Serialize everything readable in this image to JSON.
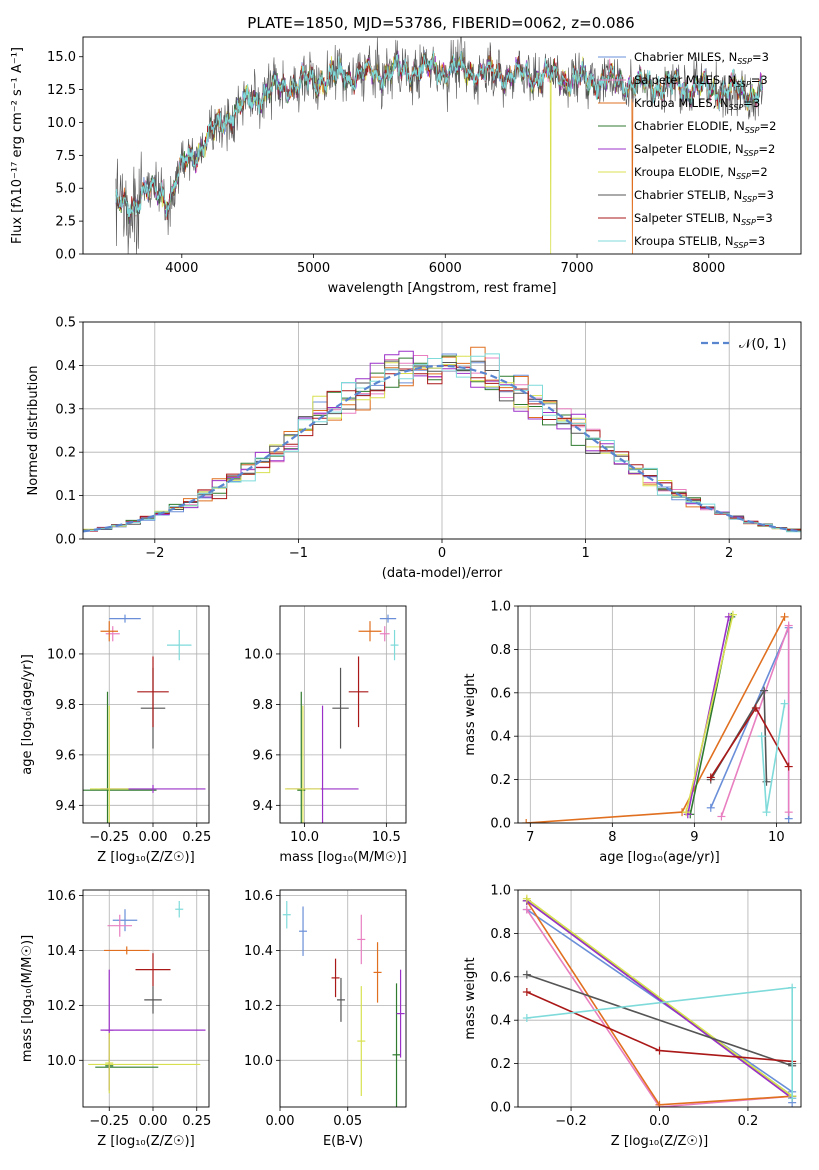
{
  "figure": {
    "title": "PLATE=1850, MJD=53786, FIBERID=0062, z=0.086"
  },
  "colors": {
    "Chabrier MILES": "#6a8fd8",
    "Salpeter MILES": "#e87fc0",
    "Kroupa MILES": "#e07020",
    "Chabrier ELODIE": "#2f7a2f",
    "Salpeter ELODIE": "#9b30c8",
    "Kroupa ELODIE": "#d8e050",
    "Chabrier STELIB": "#555555",
    "Salpeter STELIB": "#aa1818",
    "Kroupa STELIB": "#7fdada"
  },
  "chart_data": [
    {
      "id": "spectrum",
      "type": "line",
      "title": "PLATE=1850, MJD=53786, FIBERID=0062, z=0.086",
      "xlabel": "wavelength [Angstrom, rest frame]",
      "ylabel": "Flux [fλ10⁻¹⁷ erg cm⁻² s⁻¹ A⁻¹]",
      "xlim": [
        3250,
        8700
      ],
      "ylim": [
        0,
        16.5
      ],
      "xticks": [
        4000,
        5000,
        6000,
        7000,
        8000
      ],
      "yticks": [
        0.0,
        2.5,
        5.0,
        7.5,
        10.0,
        12.5,
        15.0
      ],
      "xtick_labels": [
        "4000",
        "5000",
        "6000",
        "7000",
        "8000"
      ],
      "ytick_labels": [
        "0.0",
        "2.5",
        "5.0",
        "7.5",
        "10.0",
        "12.5",
        "15.0"
      ],
      "grid": false,
      "legend_position": "right",
      "continuum": {
        "x": [
          3500,
          3600,
          3700,
          3800,
          3900,
          4000,
          4100,
          4200,
          4300,
          4400,
          4500,
          4600,
          4700,
          4800,
          4900,
          5000,
          5200,
          5400,
          5600,
          5800,
          6000,
          6200,
          6400,
          6600,
          6800,
          7000,
          7200,
          7400,
          7600,
          7800,
          8000,
          8200,
          8400
        ],
        "y": [
          3.8,
          3.3,
          4.8,
          4.6,
          4.2,
          6.5,
          7.7,
          8.8,
          10.0,
          10.8,
          11.6,
          12.2,
          12.5,
          12.8,
          13.0,
          13.2,
          13.5,
          13.7,
          13.9,
          14.0,
          14.1,
          13.9,
          13.7,
          13.6,
          13.5,
          13.3,
          13.2,
          13.0,
          12.8,
          12.7,
          12.6,
          12.4,
          12.3
        ]
      },
      "data_series": "Chabrier STELIB",
      "model_series": "Kroupa STELIB",
      "dropouts": [
        {
          "series": "Kroupa ELODIE",
          "x": 6800
        },
        {
          "series": "Kroupa MILES",
          "x": 7420
        }
      ],
      "legend": [
        {
          "name": "Chabrier MILES",
          "label": "Chabrier MILES, N",
          "sub": "SSP",
          "tail": "=3"
        },
        {
          "name": "Salpeter MILES",
          "label": "Salpeter MILES, N",
          "sub": "SSP",
          "tail": "=3"
        },
        {
          "name": "Kroupa MILES",
          "label": "Kroupa MILES, N",
          "sub": "SSP",
          "tail": "=3"
        },
        {
          "name": "Chabrier ELODIE",
          "label": "Chabrier ELODIE, N",
          "sub": "SSP",
          "tail": "=2"
        },
        {
          "name": "Salpeter ELODIE",
          "label": "Salpeter ELODIE, N",
          "sub": "SSP",
          "tail": "=2"
        },
        {
          "name": "Kroupa ELODIE",
          "label": "Kroupa ELODIE, N",
          "sub": "SSP",
          "tail": "=2"
        },
        {
          "name": "Chabrier STELIB",
          "label": "Chabrier STELIB, N",
          "sub": "SSP",
          "tail": "=3"
        },
        {
          "name": "Salpeter STELIB",
          "label": "Salpeter STELIB, N",
          "sub": "SSP",
          "tail": "=3"
        },
        {
          "name": "Kroupa STELIB",
          "label": "Kroupa STELIB, N",
          "sub": "SSP",
          "tail": "=3"
        }
      ]
    },
    {
      "id": "residuals",
      "type": "histogram",
      "xlabel": "(data-model)/error",
      "ylabel": "Normed distribution",
      "xlim": [
        -2.5,
        2.5
      ],
      "ylim": [
        0,
        0.5
      ],
      "xticks": [
        -2,
        -1,
        0,
        1,
        2
      ],
      "xtick_labels": [
        "−2",
        "−1",
        "0",
        "1",
        "2"
      ],
      "yticks": [
        0.0,
        0.1,
        0.2,
        0.3,
        0.4,
        0.5
      ],
      "ytick_labels": [
        "0.0",
        "0.1",
        "0.2",
        "0.3",
        "0.4",
        "0.5"
      ],
      "grid": true,
      "bin_width": 0.1,
      "reference": {
        "name": "N(0,1)",
        "label": "𝒩(0, 1)",
        "mu": 0,
        "sigma": 1,
        "color": "#5a86d0"
      },
      "legend_position": "top-right"
    },
    {
      "id": "age-vs-Z",
      "type": "errorbar",
      "xlabel": "Z [log₁₀(Z/Z☉)]",
      "ylabel": "age  [log₁₀(age/yr)]",
      "xlim": [
        -0.4,
        0.32
      ],
      "ylim": [
        9.33,
        10.19
      ],
      "xticks": [
        -0.25,
        0.0,
        0.25
      ],
      "xtick_labels": [
        "−0.25",
        "0.00",
        "0.25"
      ],
      "yticks": [
        9.4,
        9.6,
        9.8,
        10.0
      ],
      "ytick_labels": [
        "9.4",
        "9.6",
        "9.8",
        "10.0"
      ],
      "grid": true,
      "points": [
        {
          "series": "Chabrier MILES",
          "x": -0.16,
          "y": 10.14,
          "xerr": 0.09,
          "yerr": 0.0
        },
        {
          "series": "Salpeter MILES",
          "x": -0.23,
          "y": 10.08,
          "xerr": 0.04,
          "yerr": 0.03
        },
        {
          "series": "Kroupa MILES",
          "x": -0.25,
          "y": 10.09,
          "xerr": 0.05,
          "yerr": 0.04
        },
        {
          "series": "Chabrier ELODIE",
          "x": -0.26,
          "y": 9.46,
          "xerr": 0.28,
          "yerr": 0.39
        },
        {
          "series": "Salpeter ELODIE",
          "x": 0.0,
          "y": 9.465,
          "xerr": 0.3,
          "yerr": 0.0
        },
        {
          "series": "Kroupa ELODIE",
          "x": -0.25,
          "y": 9.465,
          "xerr": 0.11,
          "yerr": 0.33
        },
        {
          "series": "Chabrier STELIB",
          "x": 0.0,
          "y": 9.785,
          "xerr": 0.07,
          "yerr": 0.16
        },
        {
          "series": "Salpeter STELIB",
          "x": 0.0,
          "y": 9.85,
          "xerr": 0.09,
          "yerr": 0.14
        },
        {
          "series": "Kroupa STELIB",
          "x": 0.15,
          "y": 10.035,
          "xerr": 0.07,
          "yerr": 0.06
        }
      ]
    },
    {
      "id": "age-vs-mass",
      "type": "errorbar",
      "xlabel": "mass [log₁₀(M/M☉)]",
      "ylabel": "",
      "xlim": [
        9.85,
        10.62
      ],
      "ylim": [
        9.33,
        10.19
      ],
      "xticks": [
        10.0,
        10.5
      ],
      "xtick_labels": [
        "10.0",
        "10.5"
      ],
      "yticks": [
        9.4,
        9.6,
        9.8,
        10.0
      ],
      "ytick_labels": [
        "9.4",
        "9.6",
        "9.8",
        "10.0"
      ],
      "grid": true,
      "points": [
        {
          "series": "Chabrier MILES",
          "x": 10.51,
          "y": 10.14,
          "xerr": 0.05,
          "yerr": 0.0
        },
        {
          "series": "Salpeter MILES",
          "x": 10.49,
          "y": 10.08,
          "xerr": 0.03,
          "yerr": 0.03
        },
        {
          "series": "Kroupa MILES",
          "x": 10.4,
          "y": 10.09,
          "xerr": 0.07,
          "yerr": 0.04
        },
        {
          "series": "Chabrier ELODIE",
          "x": 9.98,
          "y": 9.46,
          "xerr": 0.0,
          "yerr": 0.39
        },
        {
          "series": "Salpeter ELODIE",
          "x": 10.11,
          "y": 9.465,
          "xerr": 0.22,
          "yerr": 0.33
        },
        {
          "series": "Kroupa ELODIE",
          "x": 9.99,
          "y": 9.465,
          "xerr": 0.11,
          "yerr": 0.33
        },
        {
          "series": "Chabrier STELIB",
          "x": 10.22,
          "y": 9.785,
          "xerr": 0.05,
          "yerr": 0.16
        },
        {
          "series": "Salpeter STELIB",
          "x": 10.33,
          "y": 9.85,
          "xerr": 0.06,
          "yerr": 0.14
        },
        {
          "series": "Kroupa STELIB",
          "x": 10.55,
          "y": 10.035,
          "xerr": 0.02,
          "yerr": 0.06
        }
      ]
    },
    {
      "id": "weight-vs-age",
      "type": "line",
      "xlabel": "age  [log₁₀(age/yr)]",
      "ylabel": "mass weight",
      "xlim": [
        6.85,
        10.3
      ],
      "ylim": [
        0,
        1
      ],
      "xticks": [
        7,
        8,
        9,
        10
      ],
      "xtick_labels": [
        "7",
        "8",
        "9",
        "10"
      ],
      "yticks": [
        0.0,
        0.2,
        0.4,
        0.6,
        0.8,
        1.0
      ],
      "ytick_labels": [
        "0.0",
        "0.2",
        "0.4",
        "0.6",
        "0.8",
        "1.0"
      ],
      "grid": true,
      "series": [
        {
          "name": "Chabrier MILES",
          "x": [
            9.2,
            10.15,
            10.15
          ],
          "y": [
            0.07,
            0.9,
            0.02
          ]
        },
        {
          "name": "Salpeter MILES",
          "x": [
            9.33,
            10.15,
            10.15
          ],
          "y": [
            0.03,
            0.91,
            0.05
          ]
        },
        {
          "name": "Kroupa MILES",
          "x": [
            6.95,
            8.85,
            10.1
          ],
          "y": [
            0.0,
            0.05,
            0.95
          ]
        },
        {
          "name": "Chabrier ELODIE",
          "x": [
            8.95,
            9.45
          ],
          "y": [
            0.04,
            0.95
          ]
        },
        {
          "name": "Salpeter ELODIE",
          "x": [
            8.92,
            9.42
          ],
          "y": [
            0.04,
            0.95
          ]
        },
        {
          "name": "Kroupa ELODIE",
          "x": [
            8.9,
            9.47
          ],
          "y": [
            0.05,
            0.96
          ]
        },
        {
          "name": "Chabrier STELIB",
          "x": [
            9.2,
            9.85,
            9.88
          ],
          "y": [
            0.2,
            0.61,
            0.19
          ]
        },
        {
          "name": "Salpeter STELIB",
          "x": [
            9.2,
            9.75,
            10.15
          ],
          "y": [
            0.21,
            0.53,
            0.26
          ]
        },
        {
          "name": "Kroupa STELIB",
          "x": [
            9.82,
            9.88,
            10.1
          ],
          "y": [
            0.4,
            0.05,
            0.55
          ]
        }
      ]
    },
    {
      "id": "mass-vs-Z",
      "type": "errorbar",
      "xlabel": "Z [log₁₀(Z/Z☉)]",
      "ylabel": "mass [log₁₀(M/M☉)]",
      "xlim": [
        -0.4,
        0.32
      ],
      "ylim": [
        9.83,
        10.62
      ],
      "xticks": [
        -0.25,
        0.0,
        0.25
      ],
      "xtick_labels": [
        "−0.25",
        "0.00",
        "0.25"
      ],
      "yticks": [
        10.0,
        10.2,
        10.4,
        10.6
      ],
      "ytick_labels": [
        "10.0",
        "10.2",
        "10.4",
        "10.6"
      ],
      "grid": true,
      "points": [
        {
          "series": "Chabrier MILES",
          "x": -0.16,
          "y": 10.51,
          "xerr": 0.07,
          "yerr": 0.04
        },
        {
          "series": "Salpeter MILES",
          "x": -0.19,
          "y": 10.49,
          "xerr": 0.07,
          "yerr": 0.04
        },
        {
          "series": "Kroupa MILES",
          "x": -0.15,
          "y": 10.4,
          "xerr": 0.13,
          "yerr": 0.0
        },
        {
          "series": "Chabrier ELODIE",
          "x": -0.25,
          "y": 9.98,
          "xerr": 0.0,
          "yerr": 0.0
        },
        {
          "series": "Salpeter ELODIE",
          "x": -0.25,
          "y": 10.11,
          "xerr": 0.0,
          "yerr": 0.22
        },
        {
          "series": "Kroupa ELODIE",
          "x": -0.25,
          "y": 9.99,
          "xerr": 0.0,
          "yerr": 0.11
        },
        {
          "series": "Chabrier STELIB",
          "x": 0.0,
          "y": 10.22,
          "xerr": 0.05,
          "yerr": 0.05
        },
        {
          "series": "Salpeter STELIB",
          "x": 0.0,
          "y": 10.33,
          "xerr": 0.1,
          "yerr": 0.06
        },
        {
          "series": "Kroupa STELIB",
          "x": 0.15,
          "y": 10.55,
          "xerr": 0.0,
          "yerr": 0.03
        }
      ],
      "wide_bars": [
        {
          "series": "Salpeter ELODIE",
          "x": 0.0,
          "y": 10.11,
          "xerr": 0.3
        },
        {
          "series": "Kroupa ELODIE",
          "x": -0.05,
          "y": 9.985,
          "xerr": 0.32
        },
        {
          "series": "Chabrier ELODIE",
          "x": -0.15,
          "y": 9.975,
          "xerr": 0.18
        }
      ]
    },
    {
      "id": "mass-vs-ebv",
      "type": "errorbar",
      "xlabel": "E(B-V)",
      "ylabel": "",
      "xlim": [
        0.0,
        0.093
      ],
      "ylim": [
        9.83,
        10.62
      ],
      "xticks": [
        0.0,
        0.05
      ],
      "xtick_labels": [
        "0.00",
        "0.05"
      ],
      "yticks": [
        10.0,
        10.2,
        10.4,
        10.6
      ],
      "ytick_labels": [
        "10.0",
        "10.2",
        "10.4",
        "10.6"
      ],
      "grid": true,
      "points": [
        {
          "series": "Kroupa STELIB",
          "x": 0.005,
          "y": 10.53,
          "xerr": 0.0,
          "yerr": 0.05
        },
        {
          "series": "Chabrier MILES",
          "x": 0.017,
          "y": 10.47,
          "xerr": 0.0,
          "yerr": 0.09
        },
        {
          "series": "Salpeter STELIB",
          "x": 0.041,
          "y": 10.3,
          "xerr": 0.0,
          "yerr": 0.07
        },
        {
          "series": "Chabrier STELIB",
          "x": 0.045,
          "y": 10.22,
          "xerr": 0.0,
          "yerr": 0.08
        },
        {
          "series": "Salpeter MILES",
          "x": 0.06,
          "y": 10.44,
          "xerr": 0.0,
          "yerr": 0.09
        },
        {
          "series": "Kroupa ELODIE",
          "x": 0.06,
          "y": 10.07,
          "xerr": 0.0,
          "yerr": 0.2
        },
        {
          "series": "Kroupa MILES",
          "x": 0.072,
          "y": 10.32,
          "xerr": 0.0,
          "yerr": 0.11
        },
        {
          "series": "Chabrier ELODIE",
          "x": 0.086,
          "y": 10.02,
          "xerr": 0.0,
          "yerr": 0.26
        },
        {
          "series": "Salpeter ELODIE",
          "x": 0.089,
          "y": 10.17,
          "xerr": 0.0,
          "yerr": 0.16
        }
      ]
    },
    {
      "id": "weight-vs-Z",
      "type": "line",
      "xlabel": "Z [log₁₀(Z/Z☉)]",
      "ylabel": "mass weight",
      "xlim": [
        -0.32,
        0.32
      ],
      "ylim": [
        0,
        1
      ],
      "xticks": [
        -0.2,
        0.0,
        0.2
      ],
      "xtick_labels": [
        "−0.2",
        "0.0",
        "0.2"
      ],
      "yticks": [
        0.0,
        0.2,
        0.4,
        0.6,
        0.8,
        1.0
      ],
      "ytick_labels": [
        "0.0",
        "0.2",
        "0.4",
        "0.6",
        "0.8",
        "1.0"
      ],
      "grid": true,
      "series": [
        {
          "name": "Chabrier MILES",
          "x": [
            -0.3,
            0.3,
            0.3
          ],
          "y": [
            0.91,
            0.07,
            0.02
          ]
        },
        {
          "name": "Salpeter MILES",
          "x": [
            -0.3,
            0.0,
            0.3
          ],
          "y": [
            0.91,
            0.0,
            0.05
          ]
        },
        {
          "name": "Kroupa MILES",
          "x": [
            -0.3,
            0.0,
            0.3
          ],
          "y": [
            0.95,
            0.01,
            0.05
          ]
        },
        {
          "name": "Chabrier ELODIE",
          "x": [
            -0.3,
            0.3
          ],
          "y": [
            0.95,
            0.05
          ]
        },
        {
          "name": "Salpeter ELODIE",
          "x": [
            -0.3,
            0.3
          ],
          "y": [
            0.95,
            0.04
          ]
        },
        {
          "name": "Kroupa ELODIE",
          "x": [
            -0.3,
            0.3
          ],
          "y": [
            0.96,
            0.05
          ]
        },
        {
          "name": "Chabrier STELIB",
          "x": [
            -0.3,
            0.3,
            0.3
          ],
          "y": [
            0.61,
            0.19,
            0.2
          ]
        },
        {
          "name": "Salpeter STELIB",
          "x": [
            -0.3,
            0.0,
            0.3
          ],
          "y": [
            0.53,
            0.26,
            0.21
          ]
        },
        {
          "name": "Kroupa STELIB",
          "x": [
            -0.3,
            0.3,
            0.3
          ],
          "y": [
            0.41,
            0.55,
            0.04
          ]
        }
      ]
    }
  ]
}
